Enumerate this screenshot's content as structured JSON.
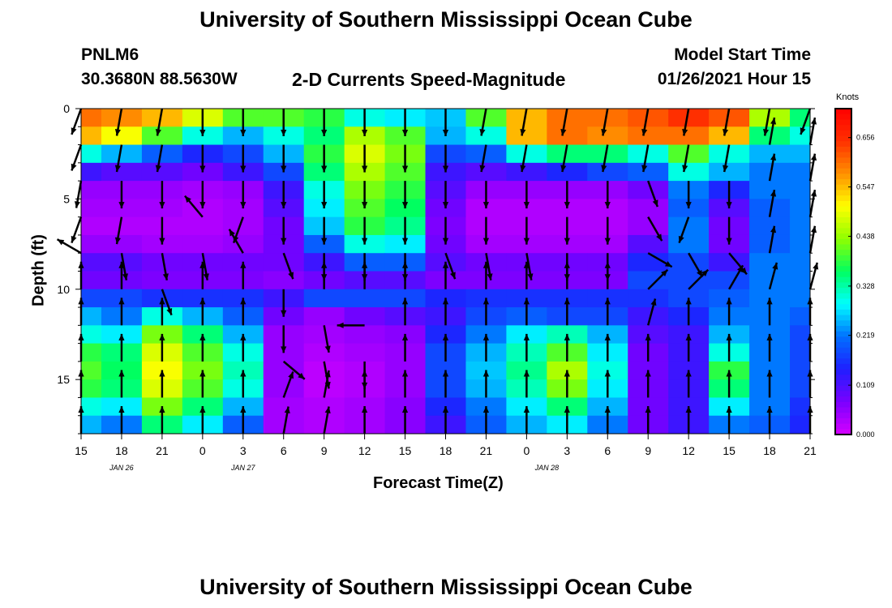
{
  "titles": {
    "top": "University of Southern Mississippi Ocean Cube",
    "bottom": "University of Southern Mississippi Ocean Cube"
  },
  "header": {
    "station": "PNLM6",
    "location": "30.3680N 88.5630W",
    "plot_title": "2-D Currents Speed-Magnitude",
    "model_label": "Model Start Time",
    "model_time": "01/26/2021 Hour 15"
  },
  "chart_data": {
    "type": "heatmap",
    "title": "2-D Currents Speed-Magnitude",
    "xlabel": "Forecast Time(Z)",
    "ylabel": "Depth (ft)",
    "x_ticks": [
      "15",
      "18",
      "21",
      "0",
      "3",
      "6",
      "9",
      "12",
      "15",
      "18",
      "21",
      "0",
      "3",
      "6",
      "9",
      "12",
      "15",
      "18",
      "21"
    ],
    "x_dates": [
      "JAN 26",
      "JAN 27",
      "JAN 28"
    ],
    "y_ticks": [
      "0",
      "5",
      "10",
      "15"
    ],
    "y_range": [
      0,
      18
    ],
    "y_inverted": true,
    "colorbar": {
      "unit": "Knots",
      "range": [
        0.0,
        0.72
      ],
      "ticks": [
        "0.656",
        "0.547",
        "0.438",
        "0.328",
        "0.219",
        "0.109",
        "0.000"
      ],
      "colors": [
        "#d600ff",
        "#7a00ff",
        "#1f1fff",
        "#0070ff",
        "#00ffff",
        "#00ff60",
        "#90ff00",
        "#ffff00",
        "#ff9000",
        "#ff3000",
        "#ff0000"
      ]
    },
    "time_columns_hours": [
      0,
      3,
      6,
      9,
      12,
      15,
      18,
      21,
      24,
      27,
      30,
      33,
      36,
      39,
      42,
      45,
      48,
      51,
      54
    ],
    "depth_rows_ft": [
      0.5,
      1.5,
      2.5,
      3.5,
      4.5,
      5.5,
      6.5,
      7.5,
      8.5,
      9.5,
      10.5,
      11.5,
      12.5,
      13.5,
      14.5,
      15.5,
      16.5,
      17.5
    ],
    "speed_knots": [
      [
        0.6,
        0.58,
        0.55,
        0.48,
        0.4,
        0.4,
        0.38,
        0.3,
        0.28,
        0.26,
        0.4,
        0.55,
        0.6,
        0.6,
        0.62,
        0.65,
        0.62,
        0.45,
        0.35
      ],
      [
        0.55,
        0.5,
        0.4,
        0.3,
        0.25,
        0.3,
        0.35,
        0.45,
        0.4,
        0.25,
        0.3,
        0.55,
        0.6,
        0.58,
        0.6,
        0.6,
        0.55,
        0.35,
        0.3
      ],
      [
        0.3,
        0.25,
        0.2,
        0.15,
        0.18,
        0.25,
        0.38,
        0.48,
        0.42,
        0.18,
        0.2,
        0.3,
        0.35,
        0.35,
        0.3,
        0.4,
        0.3,
        0.25,
        0.25
      ],
      [
        0.12,
        0.1,
        0.1,
        0.08,
        0.12,
        0.18,
        0.35,
        0.45,
        0.4,
        0.12,
        0.1,
        0.12,
        0.15,
        0.18,
        0.2,
        0.3,
        0.25,
        0.22,
        0.22
      ],
      [
        0.05,
        0.05,
        0.05,
        0.04,
        0.05,
        0.12,
        0.3,
        0.42,
        0.38,
        0.1,
        0.05,
        0.05,
        0.05,
        0.05,
        0.08,
        0.22,
        0.15,
        0.22,
        0.22
      ],
      [
        0.04,
        0.04,
        0.04,
        0.03,
        0.04,
        0.1,
        0.28,
        0.4,
        0.36,
        0.08,
        0.03,
        0.03,
        0.03,
        0.03,
        0.05,
        0.2,
        0.1,
        0.2,
        0.22
      ],
      [
        0.03,
        0.03,
        0.03,
        0.03,
        0.04,
        0.08,
        0.26,
        0.38,
        0.34,
        0.07,
        0.03,
        0.03,
        0.03,
        0.03,
        0.05,
        0.22,
        0.08,
        0.2,
        0.22
      ],
      [
        0.05,
        0.05,
        0.04,
        0.04,
        0.05,
        0.08,
        0.2,
        0.3,
        0.28,
        0.08,
        0.04,
        0.04,
        0.04,
        0.04,
        0.1,
        0.22,
        0.08,
        0.2,
        0.22
      ],
      [
        0.1,
        0.1,
        0.08,
        0.08,
        0.08,
        0.08,
        0.12,
        0.2,
        0.2,
        0.1,
        0.08,
        0.08,
        0.08,
        0.08,
        0.15,
        0.18,
        0.12,
        0.22,
        0.22
      ],
      [
        0.08,
        0.08,
        0.07,
        0.07,
        0.07,
        0.06,
        0.08,
        0.1,
        0.1,
        0.07,
        0.07,
        0.07,
        0.07,
        0.07,
        0.18,
        0.18,
        0.18,
        0.22,
        0.22
      ],
      [
        0.18,
        0.18,
        0.16,
        0.16,
        0.16,
        0.12,
        0.18,
        0.18,
        0.18,
        0.15,
        0.16,
        0.16,
        0.16,
        0.16,
        0.16,
        0.18,
        0.2,
        0.22,
        0.22
      ],
      [
        0.25,
        0.22,
        0.3,
        0.25,
        0.2,
        0.08,
        0.05,
        0.08,
        0.1,
        0.12,
        0.18,
        0.2,
        0.18,
        0.18,
        0.12,
        0.15,
        0.22,
        0.22,
        0.2
      ],
      [
        0.3,
        0.28,
        0.42,
        0.35,
        0.25,
        0.05,
        0.04,
        0.05,
        0.06,
        0.15,
        0.22,
        0.28,
        0.32,
        0.25,
        0.1,
        0.12,
        0.25,
        0.22,
        0.18
      ],
      [
        0.38,
        0.35,
        0.48,
        0.4,
        0.3,
        0.05,
        0.03,
        0.04,
        0.05,
        0.18,
        0.25,
        0.32,
        0.4,
        0.28,
        0.08,
        0.12,
        0.3,
        0.22,
        0.18
      ],
      [
        0.4,
        0.36,
        0.5,
        0.42,
        0.32,
        0.05,
        0.02,
        0.03,
        0.05,
        0.18,
        0.26,
        0.34,
        0.45,
        0.3,
        0.08,
        0.12,
        0.38,
        0.22,
        0.18
      ],
      [
        0.38,
        0.35,
        0.48,
        0.4,
        0.3,
        0.05,
        0.02,
        0.03,
        0.05,
        0.18,
        0.25,
        0.32,
        0.42,
        0.28,
        0.08,
        0.12,
        0.35,
        0.22,
        0.18
      ],
      [
        0.3,
        0.28,
        0.42,
        0.35,
        0.25,
        0.04,
        0.03,
        0.04,
        0.06,
        0.15,
        0.22,
        0.28,
        0.35,
        0.25,
        0.08,
        0.12,
        0.28,
        0.22,
        0.16
      ],
      [
        0.25,
        0.22,
        0.35,
        0.28,
        0.2,
        0.04,
        0.03,
        0.04,
        0.06,
        0.12,
        0.2,
        0.25,
        0.28,
        0.22,
        0.08,
        0.12,
        0.22,
        0.2,
        0.15
      ]
    ],
    "vector_depths_ft": [
      0,
      2,
      4,
      6,
      8,
      10,
      12,
      14,
      16,
      18
    ],
    "vector_directions_deg": [
      [
        200,
        190,
        190,
        180,
        180,
        180,
        180,
        180,
        180,
        180,
        190,
        190,
        190,
        190,
        190,
        190,
        190,
        190,
        200
      ],
      [
        200,
        190,
        190,
        180,
        180,
        180,
        180,
        180,
        180,
        180,
        190,
        190,
        190,
        190,
        190,
        190,
        190,
        10,
        10
      ],
      [
        190,
        180,
        180,
        180,
        180,
        180,
        180,
        180,
        180,
        180,
        180,
        180,
        180,
        180,
        160,
        180,
        180,
        10,
        10
      ],
      [
        200,
        190,
        180,
        320,
        200,
        180,
        180,
        180,
        180,
        180,
        180,
        180,
        180,
        180,
        150,
        200,
        180,
        10,
        10
      ],
      [
        300,
        170,
        170,
        170,
        330,
        160,
        180,
        180,
        180,
        160,
        170,
        170,
        180,
        180,
        120,
        150,
        140,
        10,
        10
      ],
      [
        0,
        0,
        160,
        0,
        0,
        180,
        0,
        0,
        0,
        0,
        0,
        0,
        0,
        0,
        45,
        45,
        30,
        15,
        15
      ],
      [
        0,
        0,
        0,
        0,
        0,
        180,
        170,
        270,
        0,
        0,
        0,
        0,
        0,
        0,
        15,
        0,
        0,
        0,
        0
      ],
      [
        0,
        0,
        0,
        0,
        0,
        130,
        170,
        180,
        0,
        0,
        0,
        0,
        0,
        0,
        0,
        0,
        0,
        0,
        0
      ],
      [
        0,
        0,
        0,
        0,
        0,
        20,
        10,
        0,
        0,
        0,
        0,
        0,
        0,
        0,
        0,
        0,
        0,
        0,
        0
      ],
      [
        0,
        0,
        0,
        0,
        0,
        10,
        10,
        0,
        0,
        0,
        0,
        0,
        0,
        0,
        0,
        0,
        0,
        0,
        0
      ]
    ]
  }
}
